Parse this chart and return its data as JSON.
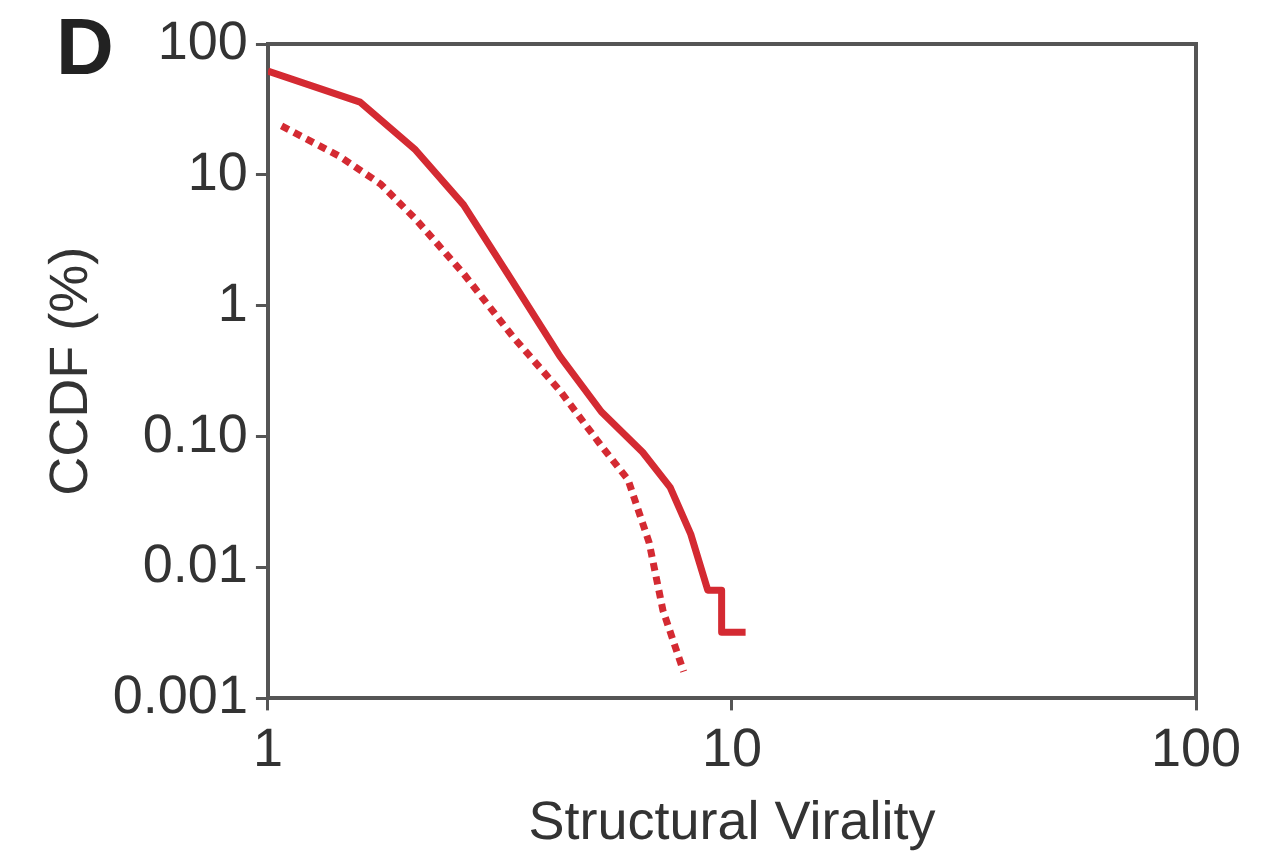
{
  "chart_data": {
    "type": "line",
    "title": "D",
    "xlabel": "Structural Virality",
    "ylabel": "CCDF (%)",
    "log": "xy",
    "xlim": [
      1,
      100
    ],
    "ylim": [
      0.001,
      100
    ],
    "xticks": [
      1,
      10,
      100
    ],
    "yticks": [
      {
        "value": 0.001,
        "label": "0.001"
      },
      {
        "value": 0.01,
        "label": "0.01"
      },
      {
        "value": 0.1,
        "label": "0.10"
      },
      {
        "value": 1,
        "label": "1"
      },
      {
        "value": 10,
        "label": "10"
      },
      {
        "value": 100,
        "label": "100"
      }
    ],
    "grid": false,
    "legend": false,
    "marker": "none",
    "series": [
      {
        "color": "#d42a32",
        "line_style": "solid",
        "x": [
          1,
          1.58,
          2.08,
          2.64,
          3.36,
          4.26,
          5.23,
          6.42,
          7.36,
          8.15,
          8.87,
          9.5,
          9.5,
          10.7
        ],
        "values": [
          62,
          36,
          15.5,
          5.9,
          1.55,
          0.41,
          0.155,
          0.076,
          0.041,
          0.018,
          0.0067,
          0.0067,
          0.0032,
          0.0032
        ]
      },
      {
        "color": "#d42a32",
        "line_style": "dashed",
        "x": [
          1.07,
          1.43,
          1.75,
          2.08,
          2.64,
          3.36,
          4.26,
          5.23,
          5.97,
          6.63,
          7.1,
          7.87
        ],
        "values": [
          23.7,
          13.8,
          8.5,
          4.6,
          1.76,
          0.59,
          0.224,
          0.085,
          0.047,
          0.0155,
          0.0047,
          0.0016
        ]
      }
    ]
  }
}
